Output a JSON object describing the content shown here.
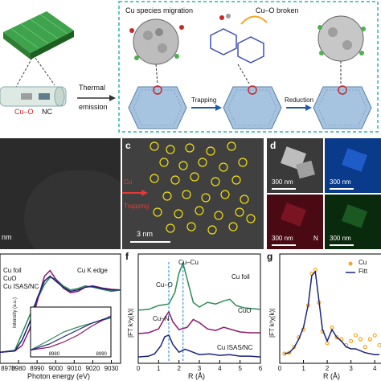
{
  "panel_a": {
    "nc_label": "NC",
    "cuo_label": "Cu–O",
    "arrow_label_1": "Thermal",
    "arrow_label_2": "emission",
    "migration_title": "Cu species migration",
    "broken_label": "Cu–O broken",
    "trapping_label": "Trapping",
    "reduction_label": "Reduction",
    "colors": {
      "dashed_border": "#2ab4b0",
      "support_green": "#4caf50",
      "cu_red": "#c62828"
    }
  },
  "panel_b": {
    "scale_text": "nm"
  },
  "panel_c": {
    "letter": "c",
    "annotation_1": "Cu",
    "annotation_2": "Trapping",
    "scale_text": "3 nm",
    "colors": {
      "circle": "#f0e010",
      "arrow": "#e53935"
    }
  },
  "panel_d": {
    "letter": "d",
    "tiles": [
      {
        "scale": "300 nm",
        "color": "#3a3a3a"
      },
      {
        "scale": "300 nm",
        "color": "#0a3a8a"
      },
      {
        "scale": "300 nm",
        "color": "#4a0a14"
      },
      {
        "scale": "300 nm",
        "color": "#0a2a0e"
      }
    ],
    "element_label": "N"
  },
  "panel_e": {
    "legend": [
      "Cu foil",
      "CuO",
      "Cu ISAS/NC"
    ],
    "edge_label": "Cu K edge",
    "xlabel": "Photon energy (eV)",
    "xticks": [
      "8970",
      "8980",
      "8990",
      "9000",
      "9010",
      "9020",
      "9030"
    ],
    "inset_ylabel": "Intensity (a.u.)",
    "inset_xticks": [
      "8980",
      "8990"
    ]
  },
  "panel_f": {
    "letter": "f",
    "ylabel": "|FT k³χ(k)|",
    "xlabel": "R (Å)",
    "xticks": [
      "0",
      "1",
      "2",
      "3",
      "4",
      "5",
      "6"
    ],
    "annotations": [
      "Cu–Cu",
      "Cu–O",
      "Cu–N",
      "Cu foil",
      "CuO",
      "Cu ISAS/NC"
    ],
    "colors": {
      "foil": "#2e8b57",
      "cuo": "#8b1a6b",
      "isas": "#1a237e"
    }
  },
  "panel_g": {
    "letter": "g",
    "ylabel": "|FT k³χ(k)|",
    "xlabel": "R (Å)",
    "xticks": [
      "0",
      "1",
      "2",
      "3",
      "4"
    ],
    "legend": [
      "Cu",
      "Fitt"
    ],
    "colors": {
      "data": "#f5a623",
      "fit": "#1a237e"
    }
  },
  "chart_data": [
    {
      "type": "line",
      "panel": "e",
      "xlim": [
        8970,
        9035
      ],
      "series": [
        {
          "name": "Cu foil",
          "color": "#2e8b57",
          "x": [
            8970,
            8978,
            8982,
            8986,
            8990,
            8994,
            8997,
            9000,
            9004,
            9008,
            9012,
            9016,
            9020,
            9025,
            9030,
            9035
          ],
          "y": [
            0.02,
            0.05,
            0.3,
            0.55,
            0.78,
            1.0,
            1.1,
            1.08,
            0.98,
            0.92,
            0.94,
            0.98,
            0.96,
            0.93,
            0.9,
            0.92
          ]
        },
        {
          "name": "CuO",
          "color": "#8b1a6b",
          "x": [
            8970,
            8978,
            8982,
            8986,
            8990,
            8994,
            8997,
            9000,
            9004,
            9008,
            9012,
            9016,
            9020,
            9025,
            9030,
            9035
          ],
          "y": [
            0.02,
            0.04,
            0.12,
            0.35,
            0.75,
            1.12,
            1.2,
            1.08,
            0.95,
            0.88,
            0.9,
            0.96,
            0.98,
            0.95,
            0.93,
            0.92
          ]
        },
        {
          "name": "Cu ISAS/NC",
          "color": "#1a237e",
          "x": [
            8970,
            8978,
            8982,
            8986,
            8990,
            8994,
            8997,
            9000,
            9004,
            9008,
            9012,
            9016,
            9020,
            9025,
            9030,
            9035
          ],
          "y": [
            0.02,
            0.04,
            0.2,
            0.45,
            0.8,
            1.05,
            1.12,
            1.05,
            0.96,
            0.9,
            0.92,
            0.96,
            0.97,
            0.94,
            0.92,
            0.92
          ]
        }
      ],
      "inset": {
        "xlim": [
          8975,
          8992
        ],
        "series": [
          {
            "name": "Cu foil",
            "x": [
              8975,
              8979,
              8982,
              8985,
              8988,
              8992
            ],
            "y": [
              0.05,
              0.3,
              0.5,
              0.62,
              0.72,
              0.85
            ]
          },
          {
            "name": "CuO",
            "x": [
              8975,
              8979,
              8982,
              8985,
              8988,
              8992
            ],
            "y": [
              0.05,
              0.12,
              0.25,
              0.42,
              0.65,
              0.9
            ]
          },
          {
            "name": "Cu ISAS/NC",
            "x": [
              8975,
              8979,
              8982,
              8985,
              8988,
              8992
            ],
            "y": [
              0.05,
              0.2,
              0.38,
              0.55,
              0.72,
              0.88
            ]
          }
        ]
      }
    },
    {
      "type": "line",
      "panel": "f",
      "xlim": [
        0,
        6
      ],
      "reference_lines": [
        1.5,
        2.2
      ],
      "series": [
        {
          "name": "Cu foil",
          "x": [
            0,
            0.5,
            1.0,
            1.5,
            1.8,
            2.0,
            2.2,
            2.4,
            2.7,
            3.0,
            3.4,
            3.8,
            4.2,
            4.5,
            4.8,
            5.2,
            5.6,
            6.0
          ],
          "y": [
            0.62,
            0.63,
            0.68,
            0.7,
            0.85,
            1.1,
            1.22,
            1.02,
            0.72,
            0.66,
            0.72,
            0.7,
            0.74,
            0.76,
            0.68,
            0.65,
            0.64,
            0.63
          ]
        },
        {
          "name": "CuO",
          "x": [
            0,
            0.5,
            1.0,
            1.3,
            1.5,
            1.7,
            2.0,
            2.4,
            2.7,
            3.0,
            3.4,
            3.8,
            4.2,
            4.6,
            5.0,
            5.5,
            6.0
          ],
          "y": [
            0.32,
            0.33,
            0.38,
            0.52,
            0.6,
            0.47,
            0.37,
            0.4,
            0.5,
            0.46,
            0.38,
            0.36,
            0.4,
            0.37,
            0.34,
            0.33,
            0.33
          ]
        },
        {
          "name": "Cu ISAS/NC",
          "x": [
            0,
            0.5,
            0.8,
            1.1,
            1.3,
            1.5,
            1.7,
            2.0,
            2.3,
            2.6,
            3.0,
            3.5,
            4.0,
            4.5,
            5.0,
            5.5,
            6.0
          ],
          "y": [
            0.02,
            0.03,
            0.06,
            0.16,
            0.28,
            0.3,
            0.18,
            0.08,
            0.12,
            0.09,
            0.05,
            0.06,
            0.04,
            0.05,
            0.03,
            0.03,
            0.02
          ]
        }
      ]
    },
    {
      "type": "line",
      "panel": "g",
      "xlim": [
        0,
        4.4
      ],
      "series": [
        {
          "name": "Cu",
          "style": "points",
          "x": [
            0.2,
            0.4,
            0.6,
            0.8,
            1.0,
            1.2,
            1.35,
            1.5,
            1.65,
            1.8,
            2.0,
            2.2,
            2.4,
            2.6,
            2.8,
            3.0,
            3.2,
            3.4,
            3.6,
            3.8,
            4.0,
            4.2
          ],
          "y": [
            0.05,
            0.06,
            0.12,
            0.22,
            0.3,
            0.55,
            0.88,
            0.92,
            0.58,
            0.28,
            0.16,
            0.32,
            0.22,
            0.2,
            0.14,
            0.18,
            0.24,
            0.2,
            0.12,
            0.2,
            0.24,
            0.14
          ]
        },
        {
          "name": "Fitt",
          "style": "line",
          "x": [
            0.2,
            0.4,
            0.6,
            0.8,
            1.0,
            1.2,
            1.35,
            1.5,
            1.65,
            1.8,
            2.0,
            2.2,
            2.4,
            2.6,
            2.8,
            3.0,
            3.2,
            3.4,
            3.6,
            3.8,
            4.0,
            4.2
          ],
          "y": [
            0.05,
            0.06,
            0.11,
            0.2,
            0.32,
            0.56,
            0.86,
            0.9,
            0.6,
            0.3,
            0.18,
            0.3,
            0.22,
            0.18,
            0.12,
            0.1,
            0.1,
            0.08,
            0.06,
            0.05,
            0.04,
            0.04
          ]
        }
      ]
    }
  ]
}
